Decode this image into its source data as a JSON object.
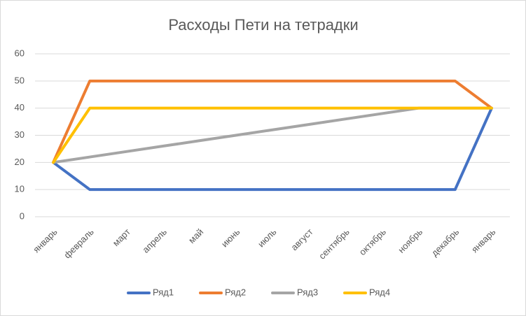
{
  "chart_data": {
    "type": "line",
    "title": "Расходы Пети на тетрадки",
    "categories": [
      "январь",
      "февраль",
      "март",
      "апрель",
      "май",
      "июнь",
      "июль",
      "август",
      "сентябрь",
      "октябрь",
      "ноябрь",
      "декабрь",
      "январь"
    ],
    "series": [
      {
        "name": "Ряд1",
        "color": "#4472c4",
        "values": [
          20,
          10,
          10,
          10,
          10,
          10,
          10,
          10,
          10,
          10,
          10,
          10,
          40
        ]
      },
      {
        "name": "Ряд2",
        "color": "#ed7d31",
        "values": [
          20,
          50,
          50,
          50,
          50,
          50,
          50,
          50,
          50,
          50,
          50,
          50,
          40
        ]
      },
      {
        "name": "Ряд3",
        "color": "#a5a5a5",
        "values": [
          20,
          22,
          24,
          26,
          28,
          30,
          32,
          34,
          36,
          38,
          40,
          40,
          40
        ]
      },
      {
        "name": "Ряд4",
        "color": "#ffc000",
        "values": [
          20,
          40,
          40,
          40,
          40,
          40,
          40,
          40,
          40,
          40,
          40,
          40,
          40
        ]
      }
    ],
    "ylim": [
      0,
      60
    ],
    "yticks": [
      0,
      10,
      20,
      30,
      40,
      50,
      60
    ],
    "grid": true,
    "legend": "bottom"
  }
}
